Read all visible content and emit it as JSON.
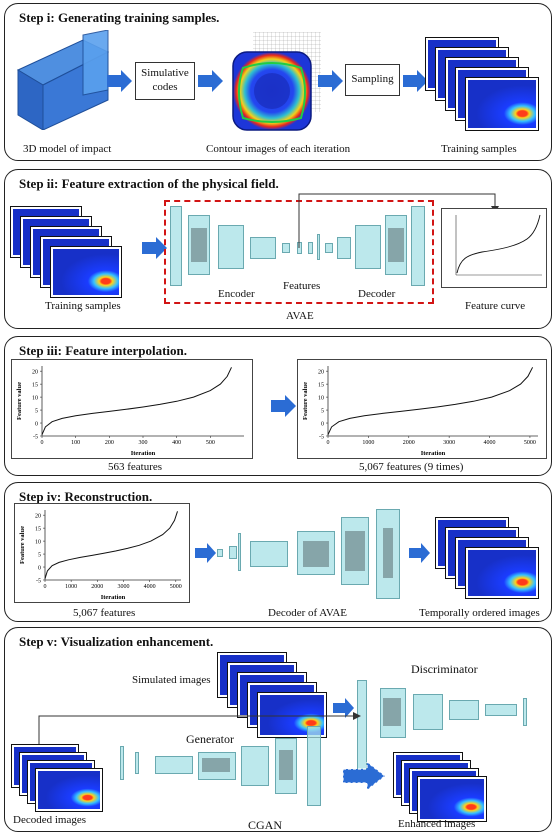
{
  "step1": {
    "title": "Step i: Generating training samples.",
    "box_simulative": "Simulative codes",
    "box_sampling": "Sampling",
    "cap_model": "3D model of impact",
    "cap_contour": "Contour images of each iteration",
    "cap_training": "Training samples"
  },
  "step2": {
    "title": "Step ii: Feature extraction of the physical field.",
    "cap_training": "Training samples",
    "encoder": "Encoder",
    "features": "Features",
    "decoder": "Decoder",
    "avae": "AVAE",
    "feature_curve": "Feature curve"
  },
  "step3": {
    "title": "Step iii: Feature interpolation.",
    "cap_left": "563 features",
    "cap_right": "5,067 features (9 times)"
  },
  "step4": {
    "title": "Step iv: Reconstruction.",
    "cap_left": "5,067 features",
    "cap_mid": "Decoder of AVAE",
    "cap_right": "Temporally ordered images"
  },
  "step5": {
    "title": "Step v: Visualization enhancement.",
    "simulated": "Simulated images",
    "discriminator": "Discriminator",
    "generator": "Generator",
    "decoded": "Decoded images",
    "cgan": "CGAN",
    "enhanced": "Enhanced images"
  },
  "chart_data": [
    {
      "type": "line",
      "xlabel": "Iteration",
      "ylabel": "Feature value",
      "xlim": [
        0,
        600
      ],
      "ylim": [
        -5,
        22
      ],
      "xticks": [
        0,
        100,
        200,
        300,
        400,
        500
      ],
      "yticks": [
        -5,
        0,
        5,
        10,
        15,
        20
      ],
      "x": [
        0,
        10,
        30,
        60,
        100,
        150,
        200,
        250,
        300,
        350,
        400,
        450,
        500,
        530,
        550,
        563
      ],
      "y": [
        -4.5,
        -1.5,
        0.5,
        1.8,
        2.8,
        3.7,
        4.5,
        5.3,
        6.2,
        7.2,
        8.4,
        10.0,
        12.5,
        15.0,
        18.0,
        21.5
      ]
    },
    {
      "type": "line",
      "xlabel": "Iteration",
      "ylabel": "Feature value",
      "xlim": [
        0,
        5200
      ],
      "ylim": [
        -5,
        22
      ],
      "xticks": [
        0,
        1000,
        2000,
        3000,
        4000,
        5000
      ],
      "yticks": [
        -5,
        0,
        5,
        10,
        15,
        20
      ],
      "x": [
        0,
        90,
        270,
        540,
        900,
        1350,
        1800,
        2250,
        2700,
        3150,
        3600,
        4050,
        4500,
        4770,
        4950,
        5067
      ],
      "y": [
        -4.5,
        -1.5,
        0.5,
        1.8,
        2.8,
        3.7,
        4.5,
        5.3,
        6.2,
        7.2,
        8.4,
        10.0,
        12.5,
        15.0,
        18.0,
        21.5
      ]
    }
  ]
}
